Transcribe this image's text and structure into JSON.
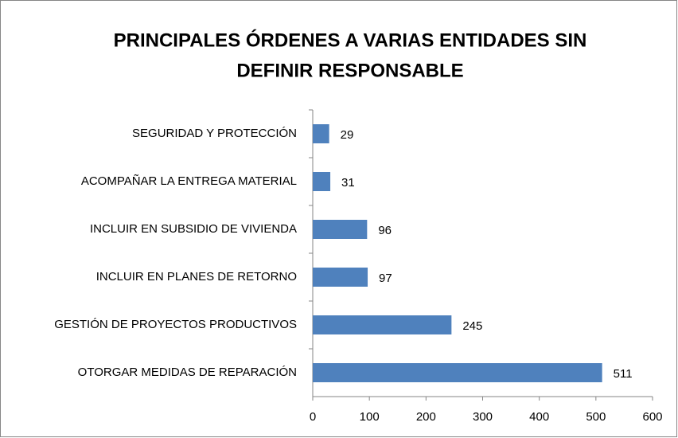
{
  "chart_data": {
    "type": "bar",
    "orientation": "horizontal",
    "title": [
      "PRINCIPALES ÓRDENES A VARIAS ENTIDADES SIN",
      "DEFINIR RESPONSABLE"
    ],
    "categories": [
      "SEGURIDAD Y PROTECCIÓN",
      "ACOMPAÑAR LA ENTREGA MATERIAL",
      "INCLUIR EN SUBSIDIO DE VIVIENDA",
      "INCLUIR EN PLANES DE RETORNO",
      "GESTIÓN DE PROYECTOS PRODUCTIVOS",
      "OTORGAR MEDIDAS DE REPARACIÓN"
    ],
    "values": [
      29,
      31,
      96,
      97,
      245,
      511
    ],
    "color": "#4f81bd",
    "xlim": [
      0,
      600
    ],
    "xticks": [
      0,
      100,
      200,
      300,
      400,
      500,
      600
    ],
    "grid": false
  }
}
